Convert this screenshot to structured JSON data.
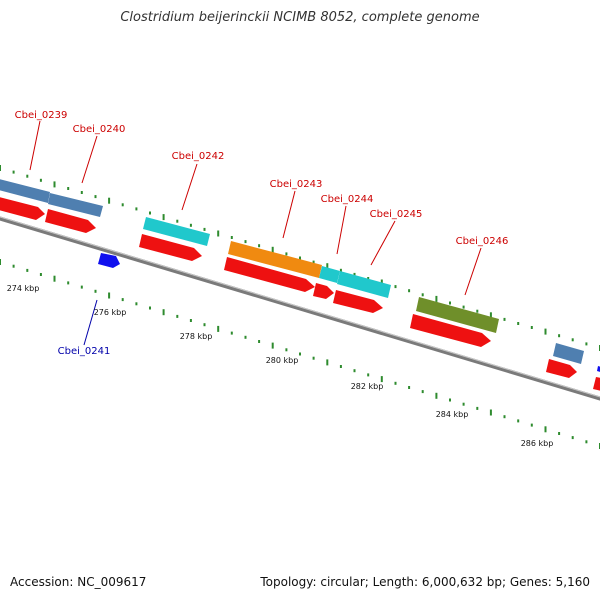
{
  "title": "Clostridium beijerinckii NCIMB 8052, complete genome",
  "footer": {
    "accession": "Accession: NC_009617",
    "summary": "Topology: circular; Length: 6,000,632 bp; Genes: 5,160"
  },
  "colors": {
    "backbone": "#7a7a7a",
    "tick": "#2e8b2e",
    "cds": "#ee1111",
    "steelblue": "#4f7fb0",
    "cyan": "#20c8cc",
    "orange": "#f08a10",
    "olive": "#6f8f2a",
    "blue_gene": "#1010ee",
    "label_red": "#cc0000",
    "label_blue": "#0000aa"
  },
  "genes": [
    {
      "id": "Cbei_0239",
      "label": "Cbei_0239",
      "color": "label_red"
    },
    {
      "id": "Cbei_0240",
      "label": "Cbei_0240",
      "color": "label_red"
    },
    {
      "id": "Cbei_0241",
      "label": "Cbei_0241",
      "color": "label_blue"
    },
    {
      "id": "Cbei_0242",
      "label": "Cbei_0242",
      "color": "label_red"
    },
    {
      "id": "Cbei_0243",
      "label": "Cbei_0243",
      "color": "label_red"
    },
    {
      "id": "Cbei_0244",
      "label": "Cbei_0244",
      "color": "label_red"
    },
    {
      "id": "Cbei_0245",
      "label": "Cbei_0245",
      "color": "label_red"
    },
    {
      "id": "Cbei_0246",
      "label": "Cbei_0246",
      "color": "label_red"
    }
  ],
  "kbp_ticks": [
    "274 kbp",
    "276 kbp",
    "278 kbp",
    "280 kbp",
    "282 kbp",
    "284 kbp",
    "286 kbp"
  ]
}
